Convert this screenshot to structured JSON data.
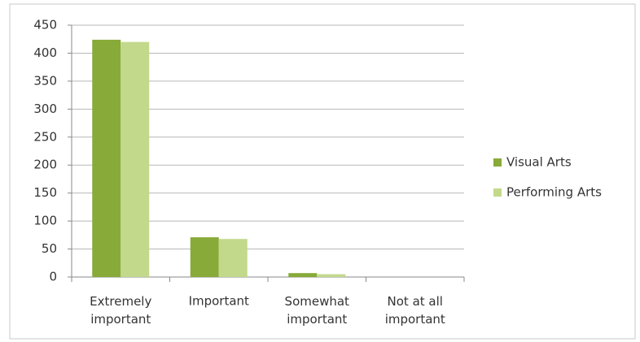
{
  "chart_data": {
    "type": "bar",
    "categories": [
      "Extremely important",
      "Important",
      "Somewhat important",
      "Not at all important"
    ],
    "series": [
      {
        "name": "Visual Arts",
        "color": "#88aa38",
        "values": [
          424,
          71,
          7,
          0
        ]
      },
      {
        "name": "Performing Arts",
        "color": "#c2d98c",
        "values": [
          420,
          68,
          5,
          0
        ]
      }
    ],
    "ylim": [
      0,
      450
    ],
    "yticks": [
      0,
      50,
      100,
      150,
      200,
      250,
      300,
      350,
      400,
      450
    ],
    "grid": true,
    "legend": "right"
  }
}
